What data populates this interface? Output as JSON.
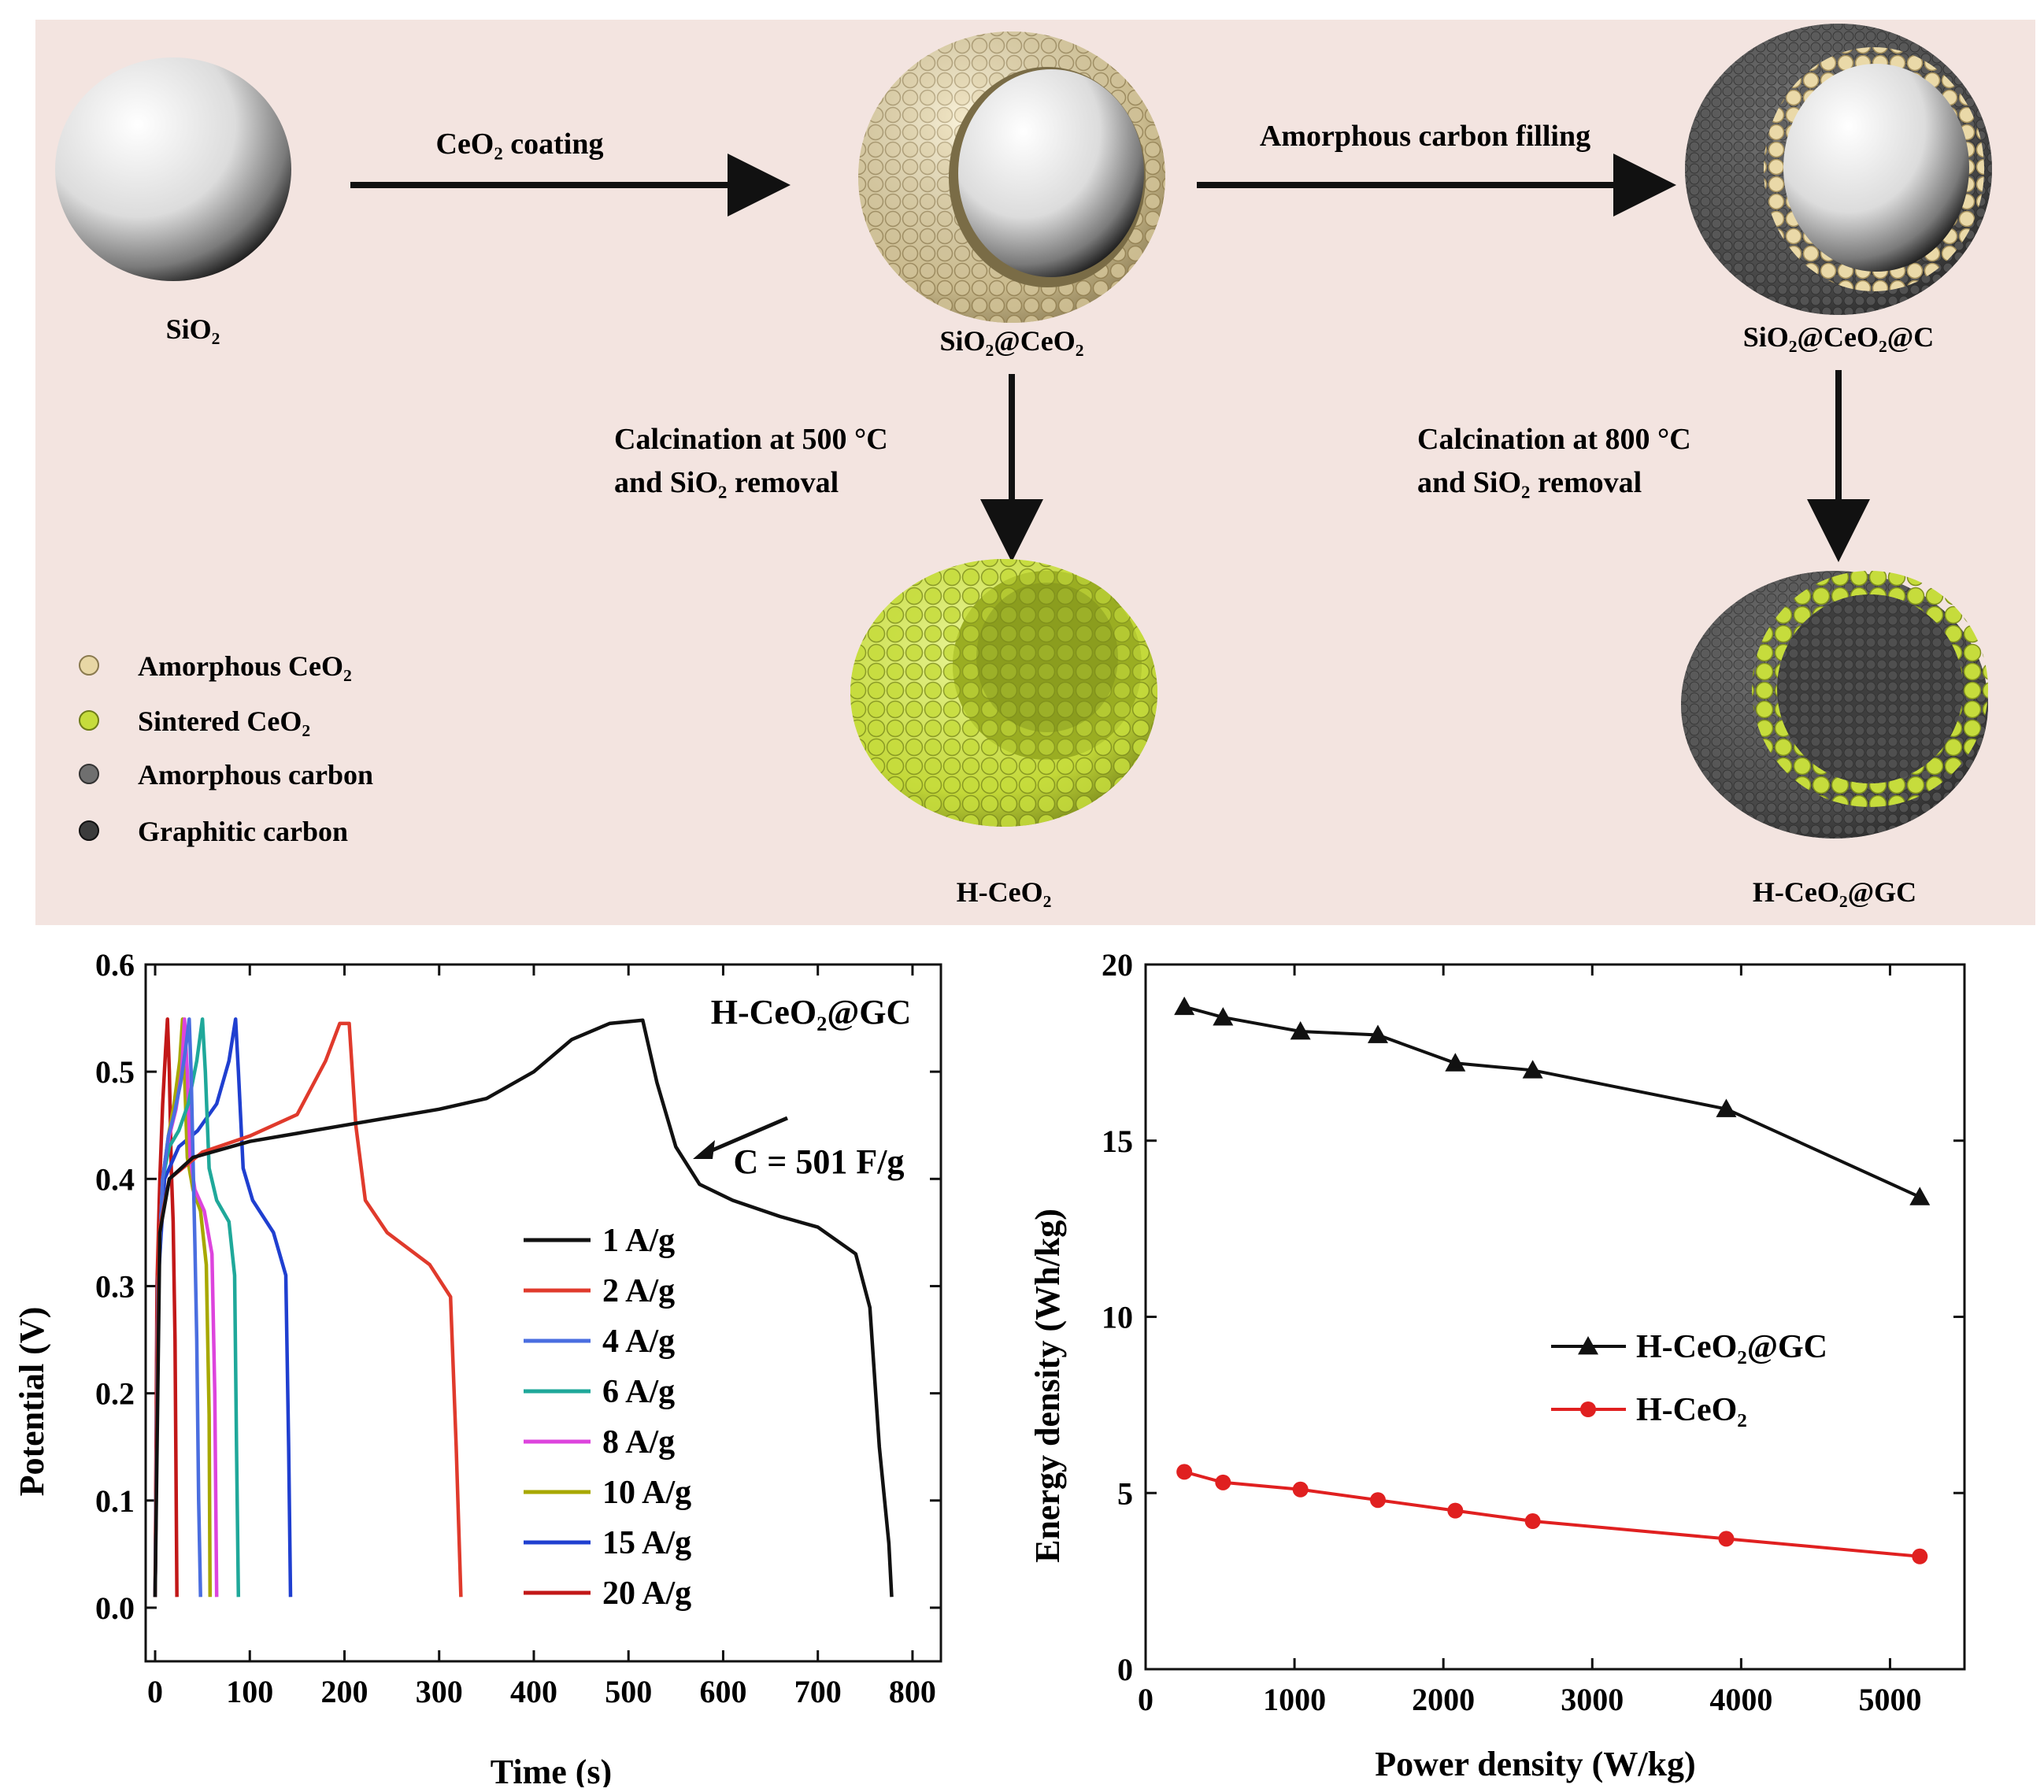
{
  "schematic": {
    "labels": {
      "sio2": "SiO₂",
      "sio2_ceo2": "SiO₂@CeO₂",
      "sio2_ceo2_c": "SiO₂@CeO₂@C",
      "h_ceo2": "H-CeO₂",
      "h_ceo2_gc": "H-CeO₂@GC"
    },
    "steps": {
      "ceo2_coating": "CeO₂ coating",
      "carbon_filling": "Amorphous carbon filling",
      "calc500_line1": "Calcination at 500 °C",
      "calc500_line2": "and SiO₂ removal",
      "calc800_line1": "Calcination at 800 °C",
      "calc800_line2": "and SiO₂ removal"
    },
    "legend": [
      {
        "label": "Amorphous CeO₂",
        "color": "#e8d7a5"
      },
      {
        "label": "Sintered CeO₂",
        "color": "#c6dc3c"
      },
      {
        "label": "Amorphous carbon",
        "color": "#6f6f6f"
      },
      {
        "label": "Graphitic carbon",
        "color": "#3c3c3c"
      }
    ],
    "colors": {
      "panel_bg": "#f3e4e0",
      "amorphous_ceo2": "#e8d7a5",
      "sintered_ceo2": "#c6dc3c",
      "carbon": "#4a4a4a"
    }
  },
  "chart_data": [
    {
      "type": "line",
      "xlabel": "Time (s)",
      "ylabel": "Potential (V)",
      "xlim": [
        -10,
        830
      ],
      "ylim": [
        -0.05,
        0.6
      ],
      "xticks": [
        0,
        100,
        200,
        300,
        400,
        500,
        600,
        700,
        800
      ],
      "yticks": [
        0.0,
        0.1,
        0.2,
        0.3,
        0.4,
        0.5,
        0.6
      ],
      "annotation": "C = 501 F/g",
      "sample_label": "H-CeO₂@GC",
      "series": [
        {
          "name": "1 A/g",
          "color": "#111111",
          "points": [
            [
              0,
              0.01
            ],
            [
              5,
              0.35
            ],
            [
              15,
              0.4
            ],
            [
              40,
              0.42
            ],
            [
              100,
              0.435
            ],
            [
              200,
              0.45
            ],
            [
              300,
              0.465
            ],
            [
              350,
              0.475
            ],
            [
              400,
              0.5
            ],
            [
              440,
              0.53
            ],
            [
              480,
              0.545
            ],
            [
              515,
              0.548
            ],
            [
              530,
              0.49
            ],
            [
              550,
              0.43
            ],
            [
              575,
              0.395
            ],
            [
              610,
              0.38
            ],
            [
              660,
              0.365
            ],
            [
              700,
              0.355
            ],
            [
              740,
              0.33
            ],
            [
              755,
              0.28
            ],
            [
              765,
              0.15
            ],
            [
              775,
              0.06
            ],
            [
              778,
              0.01
            ]
          ]
        },
        {
          "name": "2 A/g",
          "color": "#e03a2c",
          "points": [
            [
              0,
              0.01
            ],
            [
              4,
              0.35
            ],
            [
              15,
              0.4
            ],
            [
              50,
              0.425
            ],
            [
              100,
              0.44
            ],
            [
              150,
              0.46
            ],
            [
              180,
              0.51
            ],
            [
              195,
              0.545
            ],
            [
              205,
              0.545
            ],
            [
              212,
              0.45
            ],
            [
              222,
              0.38
            ],
            [
              245,
              0.35
            ],
            [
              290,
              0.32
            ],
            [
              312,
              0.29
            ],
            [
              318,
              0.15
            ],
            [
              323,
              0.01
            ]
          ]
        },
        {
          "name": "4 A/g",
          "color": "#4a6ee0",
          "points": [
            [
              0,
              0.01
            ],
            [
              3,
              0.3
            ],
            [
              8,
              0.4
            ],
            [
              14,
              0.44
            ],
            [
              20,
              0.46
            ],
            [
              27,
              0.49
            ],
            [
              32,
              0.52
            ],
            [
              36,
              0.549
            ],
            [
              38,
              0.5
            ],
            [
              40,
              0.42
            ],
            [
              42,
              0.34
            ],
            [
              44,
              0.25
            ],
            [
              46,
              0.1
            ],
            [
              48,
              0.01
            ]
          ]
        },
        {
          "name": "6 A/g",
          "color": "#1fa89a",
          "points": [
            [
              0,
              0.01
            ],
            [
              3,
              0.3
            ],
            [
              8,
              0.4
            ],
            [
              15,
              0.43
            ],
            [
              25,
              0.445
            ],
            [
              35,
              0.47
            ],
            [
              44,
              0.51
            ],
            [
              50,
              0.549
            ],
            [
              53,
              0.5
            ],
            [
              57,
              0.41
            ],
            [
              65,
              0.38
            ],
            [
              78,
              0.36
            ],
            [
              84,
              0.31
            ],
            [
              86,
              0.15
            ],
            [
              88,
              0.01
            ]
          ]
        },
        {
          "name": "8 A/g",
          "color": "#dd44dd",
          "points": [
            [
              0,
              0.01
            ],
            [
              3,
              0.3
            ],
            [
              8,
              0.4
            ],
            [
              15,
              0.44
            ],
            [
              22,
              0.465
            ],
            [
              28,
              0.5
            ],
            [
              31,
              0.549
            ],
            [
              34,
              0.5
            ],
            [
              37,
              0.42
            ],
            [
              42,
              0.39
            ],
            [
              52,
              0.37
            ],
            [
              60,
              0.33
            ],
            [
              63,
              0.2
            ],
            [
              65,
              0.01
            ]
          ]
        },
        {
          "name": "10 A/g",
          "color": "#a8a800",
          "points": [
            [
              0,
              0.01
            ],
            [
              3,
              0.3
            ],
            [
              8,
              0.4
            ],
            [
              14,
              0.44
            ],
            [
              20,
              0.47
            ],
            [
              26,
              0.51
            ],
            [
              29,
              0.549
            ],
            [
              31,
              0.5
            ],
            [
              34,
              0.42
            ],
            [
              40,
              0.39
            ],
            [
              48,
              0.37
            ],
            [
              54,
              0.32
            ],
            [
              57,
              0.18
            ],
            [
              58,
              0.01
            ]
          ]
        },
        {
          "name": "15 A/g",
          "color": "#1f3fd0",
          "points": [
            [
              0,
              0.01
            ],
            [
              3,
              0.3
            ],
            [
              10,
              0.4
            ],
            [
              25,
              0.43
            ],
            [
              45,
              0.445
            ],
            [
              65,
              0.47
            ],
            [
              78,
              0.51
            ],
            [
              85,
              0.549
            ],
            [
              88,
              0.5
            ],
            [
              93,
              0.41
            ],
            [
              103,
              0.38
            ],
            [
              125,
              0.35
            ],
            [
              138,
              0.31
            ],
            [
              141,
              0.15
            ],
            [
              143,
              0.01
            ]
          ]
        },
        {
          "name": "20 A/g",
          "color": "#c21818",
          "points": [
            [
              0,
              0.01
            ],
            [
              2,
              0.3
            ],
            [
              5,
              0.4
            ],
            [
              8,
              0.47
            ],
            [
              11,
              0.52
            ],
            [
              13,
              0.549
            ],
            [
              15,
              0.5
            ],
            [
              17,
              0.41
            ],
            [
              19,
              0.36
            ],
            [
              21,
              0.25
            ],
            [
              23,
              0.01
            ]
          ]
        }
      ]
    },
    {
      "type": "line",
      "xlabel": "Power density (W/kg)",
      "ylabel": "Energy density (Wh/kg)",
      "xlim": [
        0,
        5500
      ],
      "ylim": [
        0,
        20
      ],
      "xticks": [
        0,
        1000,
        2000,
        3000,
        4000,
        5000
      ],
      "yticks": [
        0,
        5,
        10,
        15,
        20
      ],
      "legend_position": "center-right",
      "series": [
        {
          "name": "H-CeO₂@GC",
          "color": "#111111",
          "marker": "triangle",
          "x": [
            260,
            520,
            1040,
            1560,
            2080,
            2600,
            3900,
            5200
          ],
          "y": [
            18.8,
            18.5,
            18.1,
            18.0,
            17.2,
            17.0,
            15.9,
            13.4
          ]
        },
        {
          "name": "H-CeO₂",
          "color": "#e02020",
          "marker": "circle",
          "x": [
            260,
            520,
            1040,
            1560,
            2080,
            2600,
            3900,
            5200
          ],
          "y": [
            5.6,
            5.3,
            5.1,
            4.8,
            4.5,
            4.2,
            3.7,
            3.2
          ]
        }
      ]
    }
  ]
}
